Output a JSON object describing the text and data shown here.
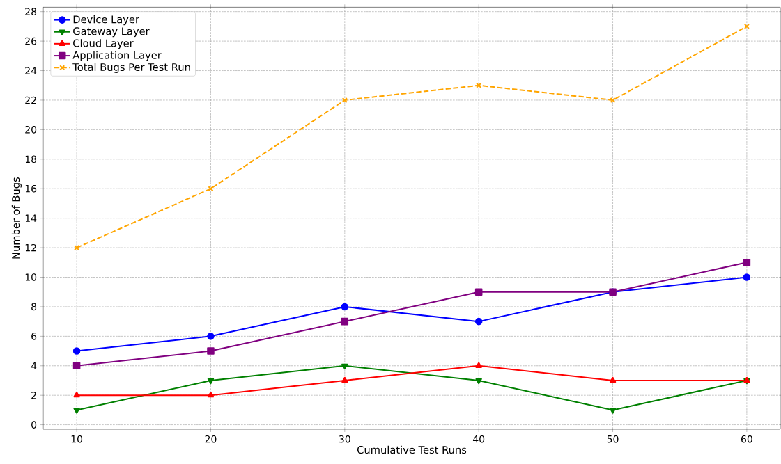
{
  "chart_data": {
    "type": "line",
    "xlabel": "Cumulative Test Runs",
    "ylabel": "Number of Bugs",
    "x": [
      10,
      20,
      30,
      40,
      50,
      60
    ],
    "series": [
      {
        "name": "Device Layer",
        "color": "#0000ff",
        "marker": "circle",
        "line_style": "solid",
        "values": [
          5,
          6,
          8,
          7,
          9,
          10
        ]
      },
      {
        "name": "Gateway Layer",
        "color": "#008000",
        "marker": "triangle_down",
        "line_style": "solid",
        "values": [
          1,
          3,
          4,
          3,
          1,
          3
        ]
      },
      {
        "name": "Cloud Layer",
        "color": "#ff0000",
        "marker": "triangle",
        "line_style": "solid",
        "values": [
          2,
          2,
          3,
          4,
          3,
          3
        ]
      },
      {
        "name": "Application Layer",
        "color": "#800080",
        "marker": "square",
        "line_style": "solid",
        "values": [
          4,
          5,
          7,
          9,
          9,
          11
        ]
      },
      {
        "name": "Total Bugs Per Test Run",
        "color": "#ffa500",
        "marker": "cross",
        "line_style": "dashed",
        "values": [
          12,
          16,
          22,
          23,
          22,
          27
        ]
      }
    ],
    "xlim": [
      7.5,
      62.5
    ],
    "ylim": [
      -0.3,
      28.3
    ],
    "xticks": [
      10,
      20,
      30,
      40,
      50,
      60
    ],
    "yticks": [
      0,
      2,
      4,
      6,
      8,
      10,
      12,
      14,
      16,
      18,
      20,
      22,
      24,
      26,
      28
    ],
    "grid": true,
    "legend": "top left"
  }
}
